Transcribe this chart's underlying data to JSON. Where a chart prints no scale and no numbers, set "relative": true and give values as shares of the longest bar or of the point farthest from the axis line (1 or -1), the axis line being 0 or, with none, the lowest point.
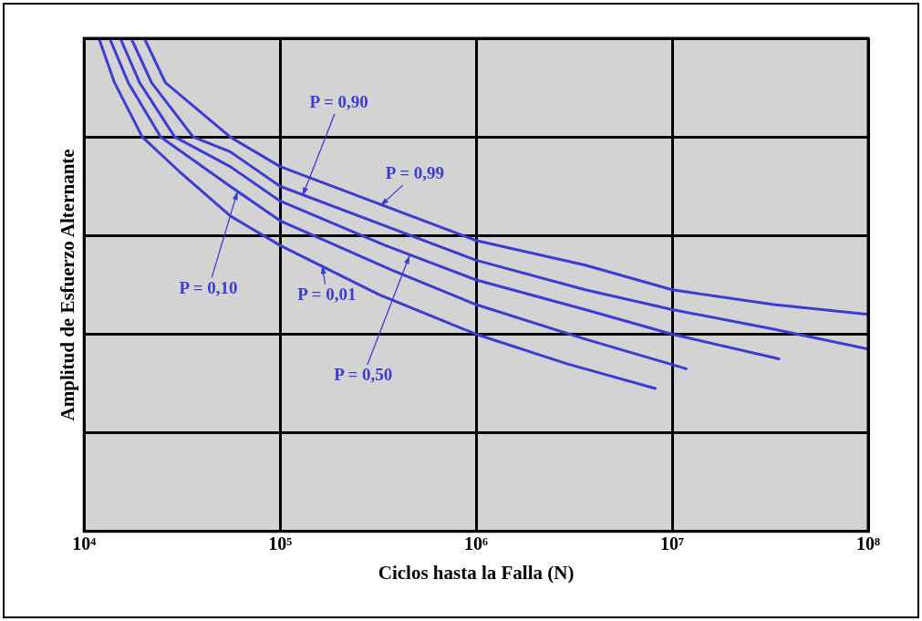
{
  "chart_data": {
    "type": "line",
    "xlabel": "Ciclos hasta la Falla (N)",
    "ylabel": "Amplitud de Esfuerzo Alternante",
    "relative": true,
    "annotations": [
      {
        "text": "P = 0,01",
        "x": 164000,
        "y": 0.54
      },
      {
        "text": "P = 0,10",
        "x": 60700,
        "y": 0.69
      },
      {
        "text": "P = 0,50",
        "x": 458000,
        "y": 0.56
      },
      {
        "text": "P = 0,90",
        "x": 130000,
        "y": 0.68
      },
      {
        "text": "P = 0,99",
        "x": 324000,
        "y": 0.66
      }
    ],
    "log": "x",
    "grid": true,
    "legend": false,
    "marker": "none",
    "line_style": "solid",
    "xlim": [
      10000,
      100000000
    ],
    "xticks": [
      {
        "value": 10000,
        "label": "10⁴"
      },
      {
        "value": 100000,
        "label": "10⁵"
      },
      {
        "value": 1000000,
        "label": "10⁶"
      },
      {
        "value": 10000000,
        "label": "10⁷"
      },
      {
        "value": 100000000,
        "label": "10⁸"
      }
    ],
    "series": [
      {
        "color": "#3c3cd2",
        "x": [
          11900,
          14300,
          19800,
          30600,
          55600,
          100000,
          320000,
          1000000,
          2900000,
          8200000
        ],
        "values": [
          1,
          0.91,
          0.8,
          0.73,
          0.64,
          0.58,
          0.48,
          0.4,
          0.34,
          0.29
        ]
      },
      {
        "color": "#3c3cd2",
        "x": [
          13500,
          16800,
          24600,
          55600,
          100000,
          371000,
          1000000,
          3600000,
          11800000
        ],
        "values": [
          1,
          0.91,
          0.8,
          0.7,
          0.63,
          0.53,
          0.46,
          0.39,
          0.33
        ]
      },
      {
        "color": "#3c3cd2",
        "x": [
          15300,
          19200,
          29000,
          55600,
          100000,
          344000,
          1000000,
          3600000,
          10000000,
          35000000
        ],
        "values": [
          1,
          0.91,
          0.8,
          0.74,
          0.67,
          0.58,
          0.51,
          0.45,
          0.4,
          0.35
        ]
      },
      {
        "color": "#3c3cd2",
        "x": [
          17400,
          22100,
          36000,
          55600,
          100000,
          1000000,
          3600000,
          10000000,
          33000000,
          100000000
        ],
        "values": [
          1,
          0.91,
          0.8,
          0.77,
          0.7,
          0.55,
          0.49,
          0.45,
          0.41,
          0.37
        ]
      },
      {
        "color": "#3c3cd2",
        "x": [
          20300,
          26000,
          55600,
          100000,
          1000000,
          3600000,
          10000000,
          33000000,
          100000000
        ],
        "values": [
          1,
          0.91,
          0.8,
          0.74,
          0.59,
          0.54,
          0.49,
          0.46,
          0.44
        ]
      }
    ]
  }
}
